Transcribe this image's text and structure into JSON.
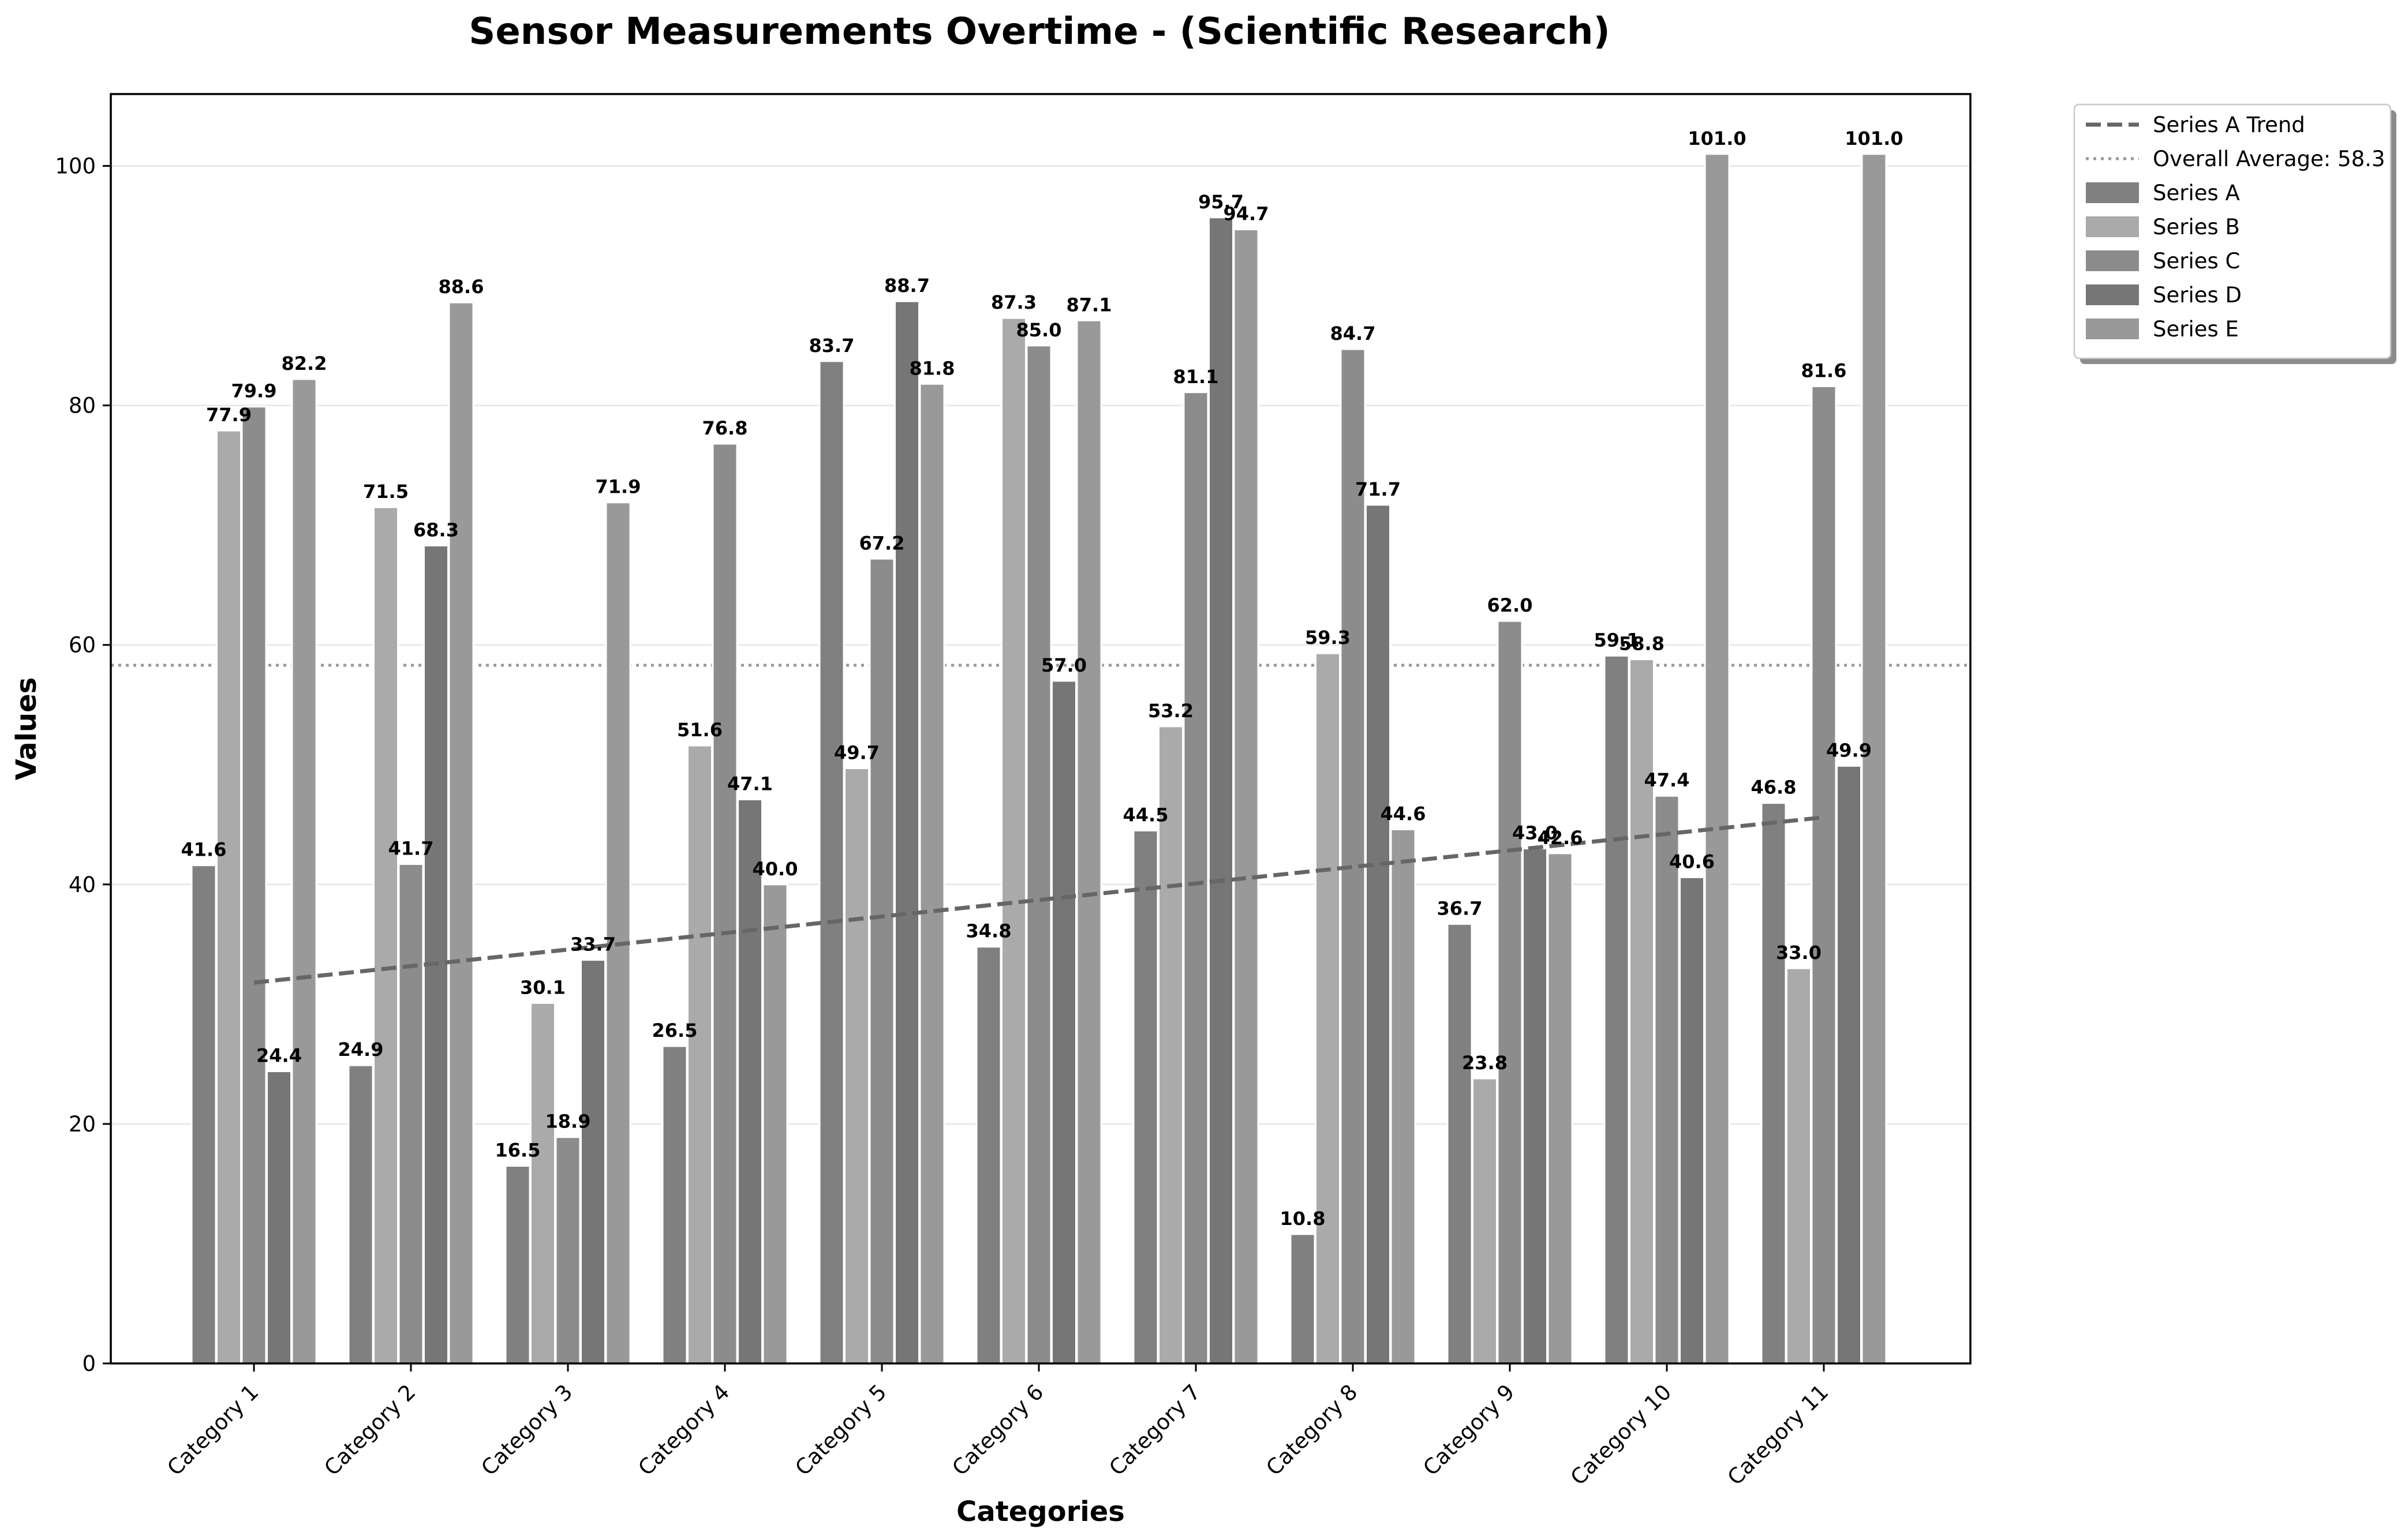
{
  "chart_data": {
    "type": "bar",
    "title": "Sensor Measurements Overtime - (Scientific Research)",
    "xlabel": "Categories",
    "ylabel": "Values",
    "ylim": [
      0,
      106
    ],
    "yticks": [
      "0",
      "20",
      "40",
      "60",
      "80",
      "100"
    ],
    "categories": [
      "Category 1",
      "Category 2",
      "Category 3",
      "Category 4",
      "Category 5",
      "Category 6",
      "Category 7",
      "Category 8",
      "Category 9",
      "Category 10",
      "Category 11"
    ],
    "series": [
      {
        "name": "Series A",
        "color": "#808080",
        "values": [
          41.6,
          24.9,
          16.5,
          26.5,
          83.7,
          34.8,
          44.5,
          10.8,
          36.7,
          59.1,
          46.8
        ],
        "labels": [
          "41.6",
          "24.9",
          "16.5",
          "26.5",
          "83.7",
          "34.8",
          "44.5",
          "10.8",
          "36.7",
          "59.1",
          "46.8"
        ]
      },
      {
        "name": "Series B",
        "color": "#aaaaaa",
        "values": [
          77.9,
          71.5,
          30.1,
          51.6,
          49.7,
          87.3,
          53.2,
          59.3,
          23.8,
          58.8,
          33.0
        ],
        "labels": [
          "77.9",
          "71.5",
          "30.1",
          "51.6",
          "49.7",
          "87.3",
          "53.2",
          "59.3",
          "23.8",
          "58.8",
          "33.0"
        ]
      },
      {
        "name": "Series C",
        "color": "#8c8c8c",
        "values": [
          79.9,
          41.7,
          18.9,
          76.8,
          67.2,
          85.0,
          81.1,
          84.7,
          62.0,
          47.4,
          81.6
        ],
        "labels": [
          "79.9",
          "41.7",
          "18.9",
          "76.8",
          "67.2",
          "85.0",
          "81.1",
          "84.7",
          "62.0",
          "47.4",
          "81.6"
        ]
      },
      {
        "name": "Series D",
        "color": "#767676",
        "values": [
          24.4,
          68.3,
          33.7,
          47.1,
          88.7,
          57.0,
          95.7,
          71.7,
          43.0,
          40.6,
          49.9
        ],
        "labels": [
          "24.4",
          "68.3",
          "33.7",
          "47.1",
          "88.7",
          "57.0",
          "95.7",
          "71.7",
          "43.0",
          "40.6",
          "49.9"
        ]
      },
      {
        "name": "Series E",
        "color": "#999999",
        "values": [
          82.2,
          88.6,
          71.9,
          40.0,
          81.8,
          87.1,
          94.7,
          44.6,
          42.6,
          101.0,
          101.0
        ],
        "labels": [
          "82.2",
          "88.6",
          "71.9",
          "40.0",
          "81.8",
          "87.1",
          "94.7",
          "44.6",
          "42.6",
          "101.0",
          "101.0"
        ]
      }
    ],
    "trend": {
      "name": "Series A Trend",
      "start": 31.8,
      "end": 45.6,
      "color": "#666666"
    },
    "average": {
      "name": "Overall Average: 58.3",
      "value": 58.3,
      "color": "#999999"
    },
    "grid": "horizontal",
    "legend_position": "outside-top-right"
  }
}
